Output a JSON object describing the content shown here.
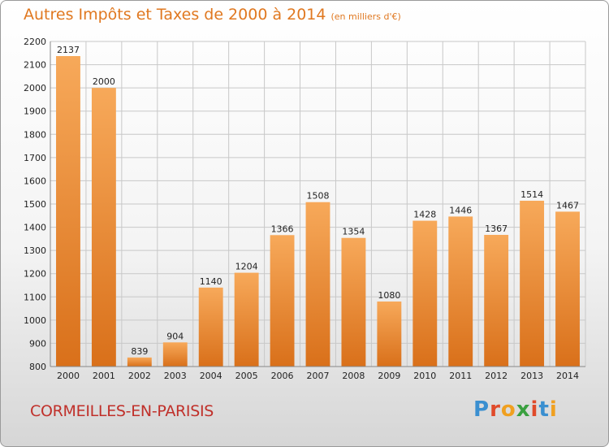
{
  "header": {
    "title": "Autres Impôts et Taxes de 2000 à 2014",
    "unit": "(en milliers d'€)"
  },
  "footer": {
    "commune": "CORMEILLES-EN-PARISIS",
    "brand": "Proxiti",
    "brand_colors": [
      "#3a8fd0",
      "#e04a2a",
      "#f0a020",
      "#3aa040",
      "#e04a2a",
      "#3a8fd0",
      "#f0a020"
    ]
  },
  "colors": {
    "bar_top": "#f7a95a",
    "bar_bottom": "#d9701a",
    "grid": "#c8c8c8",
    "axis_text": "#222222"
  },
  "chart_data": {
    "type": "bar",
    "categories": [
      "2000",
      "2001",
      "2002",
      "2003",
      "2004",
      "2005",
      "2006",
      "2007",
      "2008",
      "2009",
      "2010",
      "2011",
      "2012",
      "2013",
      "2014"
    ],
    "values": [
      2137,
      2000,
      839,
      904,
      1140,
      1204,
      1366,
      1508,
      1354,
      1080,
      1428,
      1446,
      1367,
      1514,
      1467
    ],
    "title": "Autres Impôts et Taxes de 2000 à 2014",
    "ylabel": "",
    "xlabel": "",
    "ylim": [
      800,
      2200
    ],
    "yticks": [
      800,
      900,
      1000,
      1100,
      1200,
      1300,
      1400,
      1500,
      1600,
      1700,
      1800,
      1900,
      2000,
      2100,
      2200
    ],
    "grid": true,
    "data_labels": true
  }
}
